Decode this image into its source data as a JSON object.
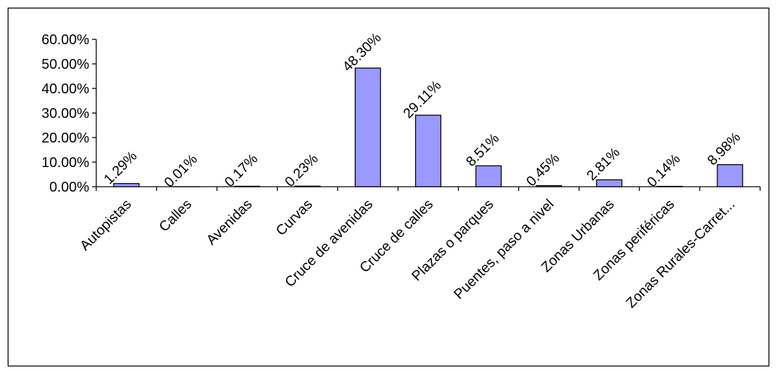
{
  "chart_data": {
    "type": "bar",
    "categories": [
      "Autopistas",
      "Calles",
      "Avenidas",
      "Curvas",
      "Cruce de avenidas",
      "Cruce de calles",
      "Plazas o parques",
      "Puentes, paso a nivel",
      "Zonas Urbanas",
      "Zonas periféricas",
      "Zonas Rurales-Carret..."
    ],
    "values": [
      1.29,
      0.01,
      0.17,
      0.23,
      48.3,
      29.11,
      8.51,
      0.45,
      2.81,
      0.14,
      8.98
    ],
    "data_labels": [
      "1.29%",
      "0.01%",
      "0.17%",
      "0.23%",
      "48.30%",
      "29.11%",
      "8.51%",
      "0.45%",
      "2.81%",
      "0.14%",
      "8.98%"
    ],
    "y_ticks": [
      0,
      10,
      20,
      30,
      40,
      50,
      60
    ],
    "y_tick_labels": [
      "0.00%",
      "10.00%",
      "20.00%",
      "30.00%",
      "40.00%",
      "50.00%",
      "60.00%"
    ],
    "ylim": [
      0,
      60
    ],
    "title": "",
    "xlabel": "",
    "ylabel": "",
    "grid": false,
    "legend": "none",
    "colors": {
      "bar_fill": "#9999ff",
      "bar_stroke": "#000000",
      "axis": "#000000",
      "frame": "#000000"
    }
  }
}
